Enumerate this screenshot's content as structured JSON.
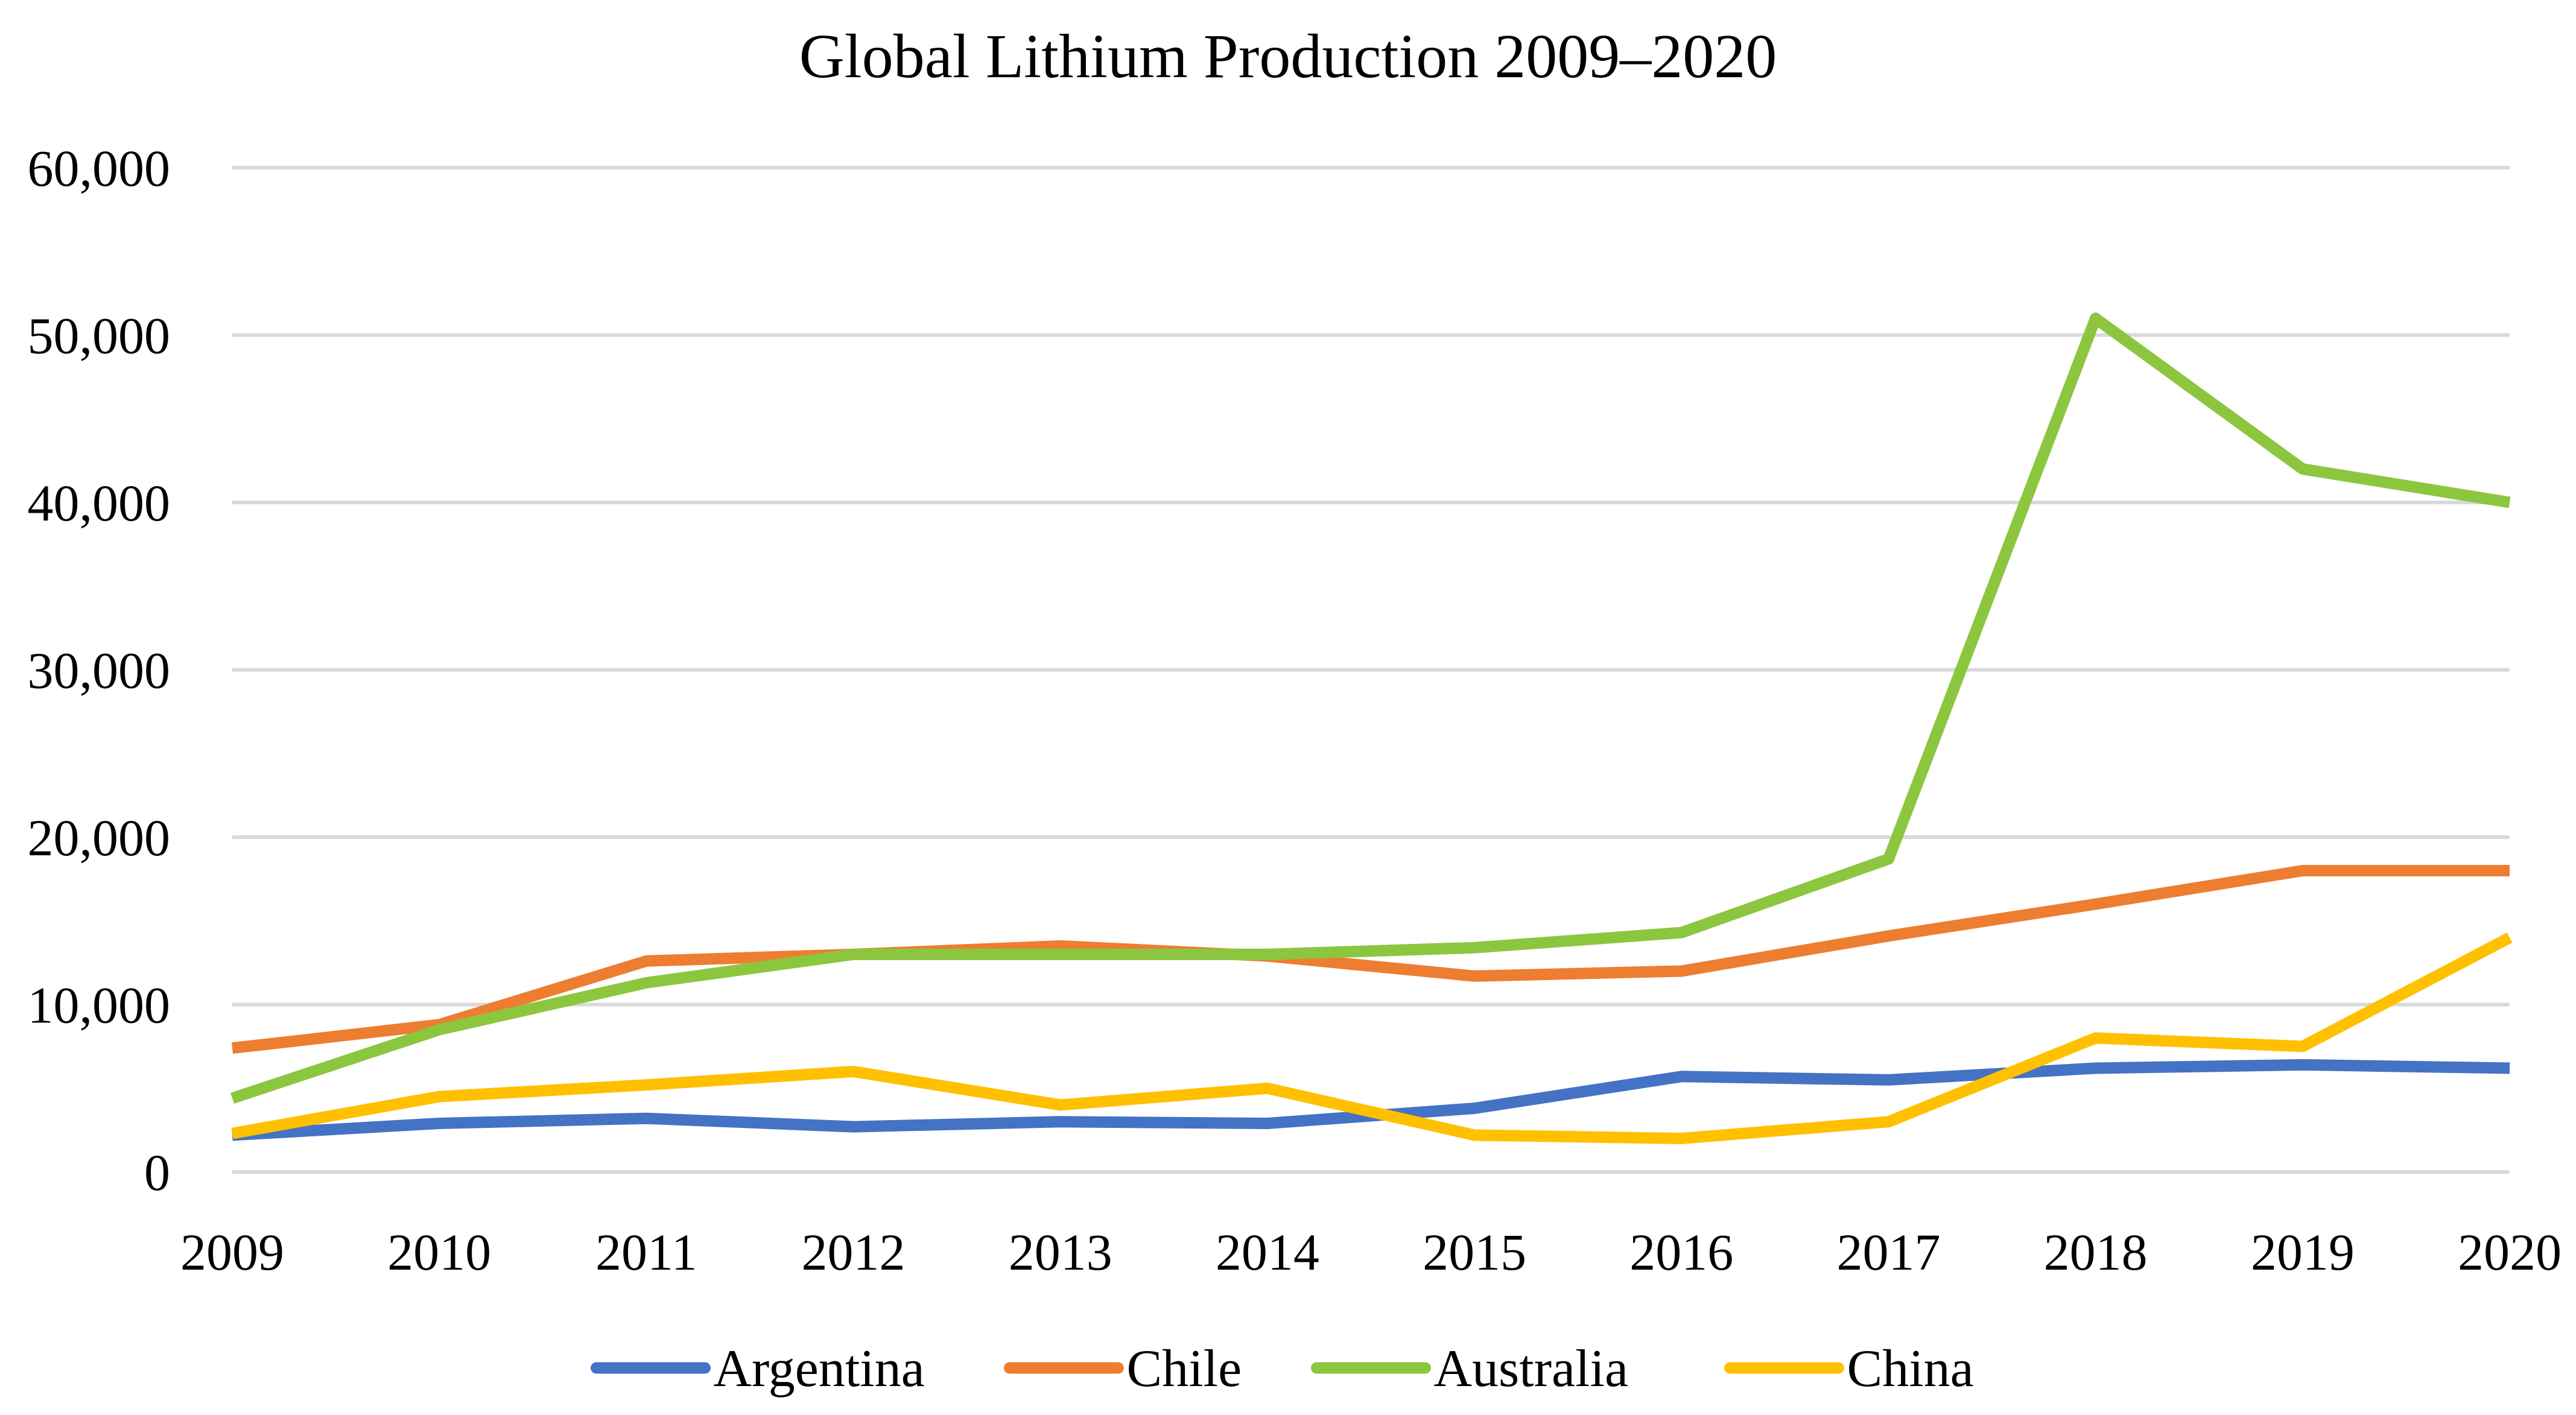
{
  "chart_data": {
    "type": "line",
    "title": "Global Lithium Production 2009–2020",
    "xlabel": "",
    "ylabel": "",
    "categories": [
      "2009",
      "2010",
      "2011",
      "2012",
      "2013",
      "2014",
      "2015",
      "2016",
      "2017",
      "2018",
      "2019",
      "2020"
    ],
    "ylim": [
      0,
      60000
    ],
    "yticks": [
      0,
      10000,
      20000,
      30000,
      40000,
      50000,
      60000
    ],
    "ytick_labels": [
      "0",
      "10,000",
      "20,000",
      "30,000",
      "40,000",
      "50,000",
      "60,000"
    ],
    "grid": true,
    "legend_position": "bottom",
    "series": [
      {
        "name": "Argentina",
        "color": "#4472c4",
        "values": [
          2200,
          2900,
          3200,
          2700,
          3000,
          2900,
          3800,
          5700,
          5500,
          6200,
          6400,
          6200
        ]
      },
      {
        "name": "Chile",
        "color": "#ed7d31",
        "values": [
          7400,
          8800,
          12600,
          13000,
          13500,
          12900,
          11700,
          12000,
          14100,
          16000,
          18000,
          18000
        ]
      },
      {
        "name": "Australia",
        "color": "#8cc63f",
        "values": [
          4400,
          8500,
          11300,
          13000,
          13000,
          13000,
          13400,
          14300,
          18700,
          51000,
          42000,
          40000
        ]
      },
      {
        "name": "China",
        "color": "#ffc000",
        "values": [
          2300,
          4500,
          5200,
          6000,
          4000,
          5000,
          2200,
          2000,
          3000,
          8000,
          7500,
          14000
        ]
      }
    ]
  }
}
